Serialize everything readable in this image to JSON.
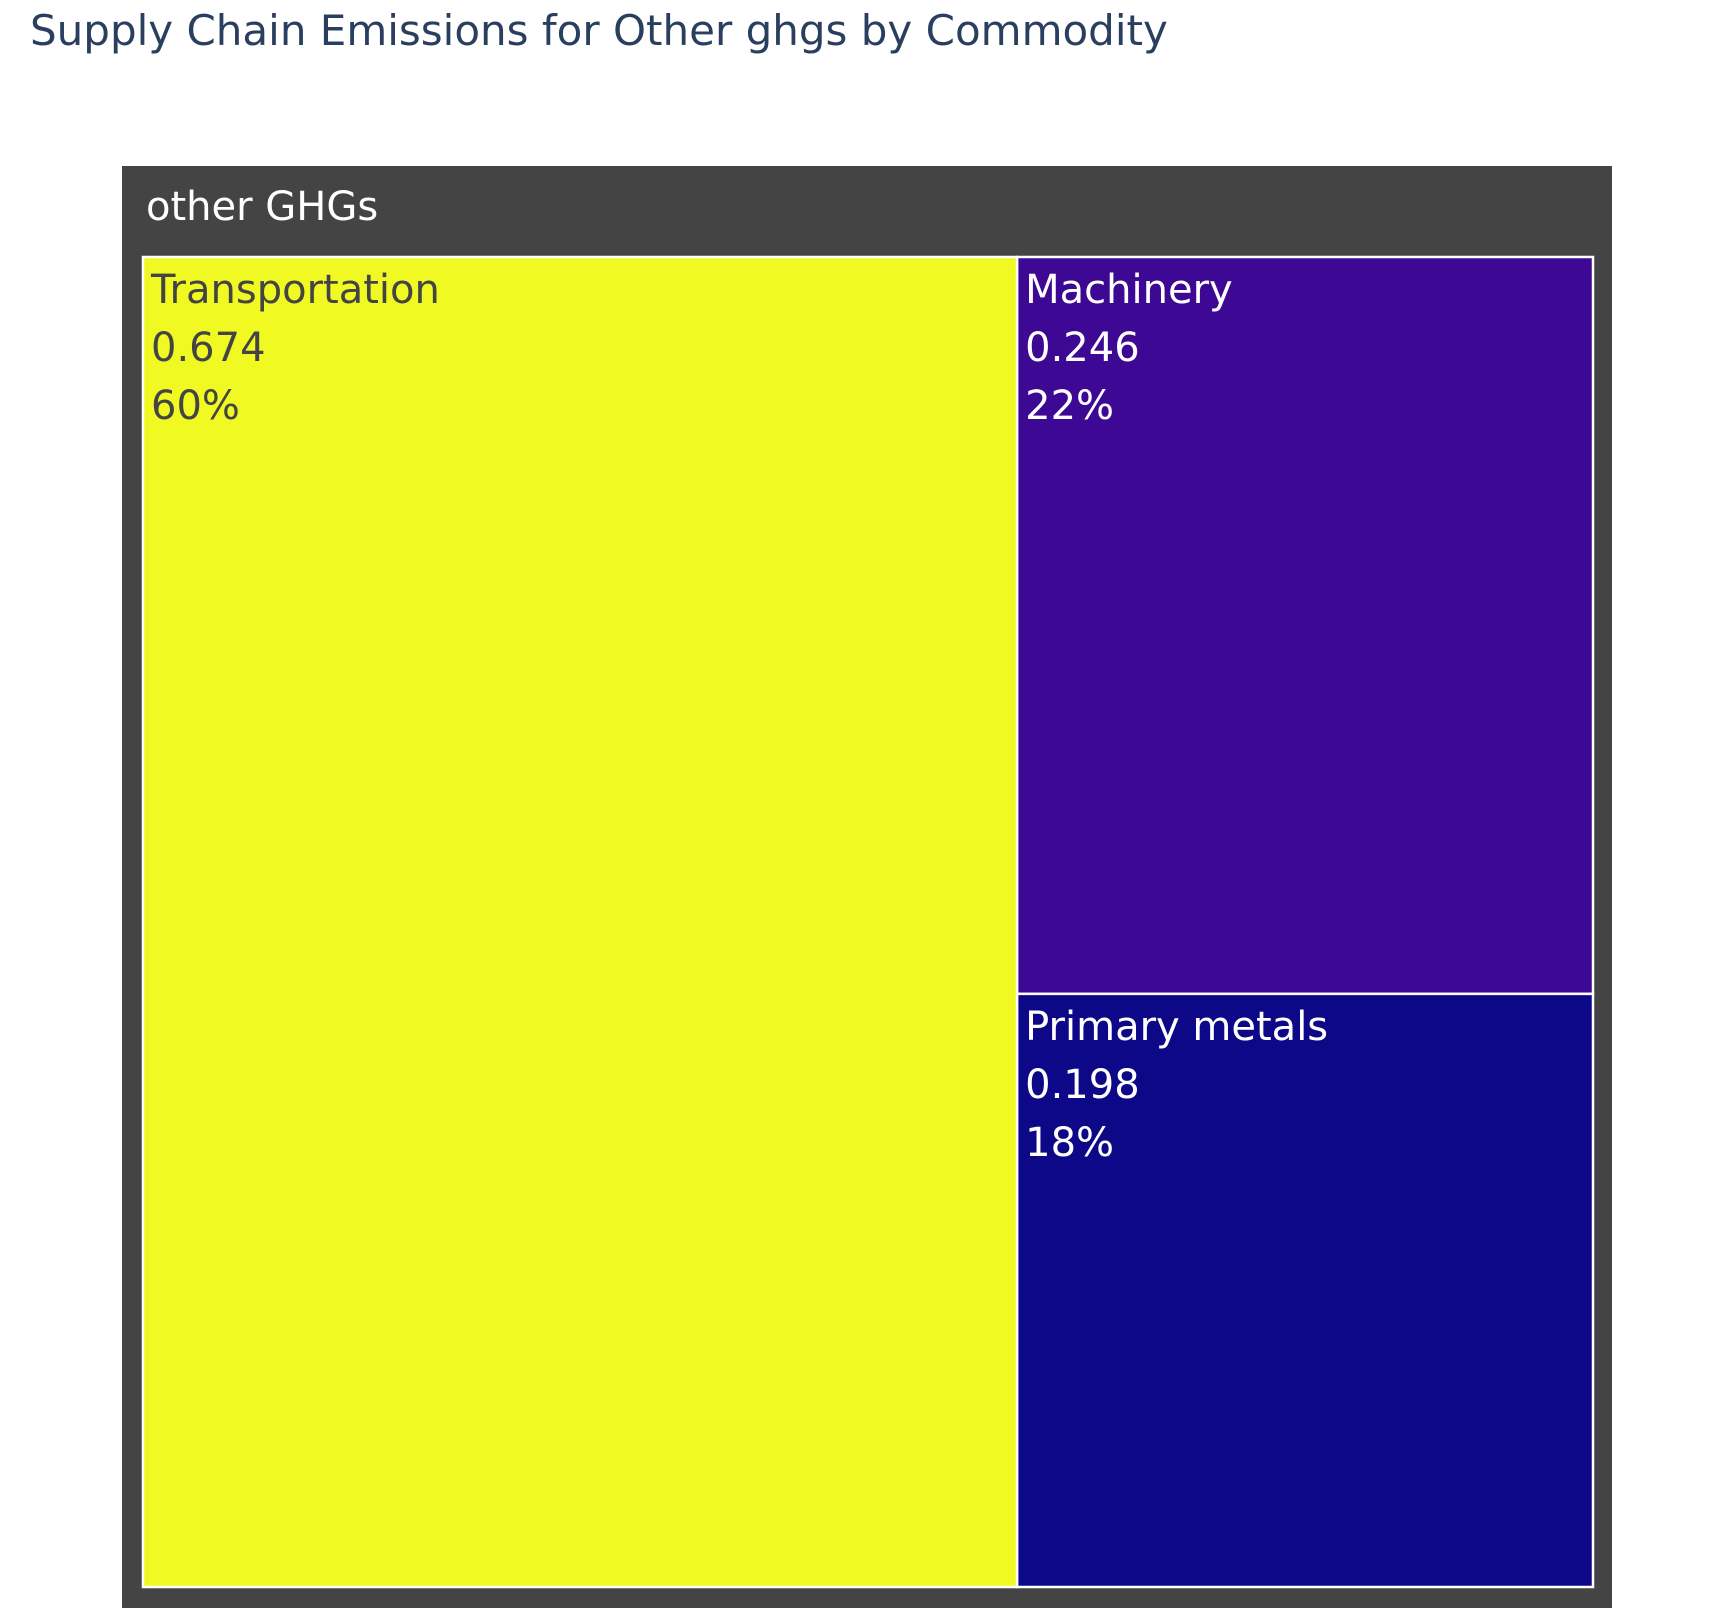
{
  "chart_data": {
    "type": "treemap",
    "title": "Supply Chain Emissions for Other ghgs by Commodity",
    "root": {
      "label": "other GHGs",
      "color": "#444444"
    },
    "items": [
      {
        "label": "Transportation",
        "value_text": "0.674",
        "percent_text": "60%",
        "value": 0.674,
        "color": "#f0f921",
        "text_color": "#444444"
      },
      {
        "label": "Machinery",
        "value_text": "0.246",
        "percent_text": "22%",
        "value": 0.246,
        "color": "#3d0894",
        "text_color": "#ffffff"
      },
      {
        "label": "Primary metals",
        "value_text": "0.198",
        "percent_text": "18%",
        "value": 0.198,
        "color": "#0d0887",
        "text_color": "#ffffff"
      }
    ]
  }
}
